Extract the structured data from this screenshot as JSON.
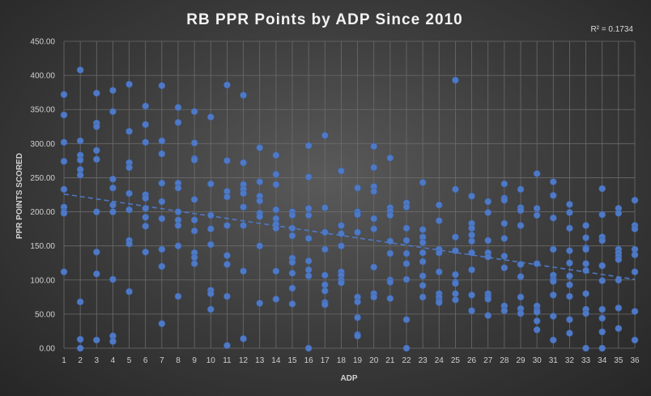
{
  "chart_data": {
    "type": "scatter",
    "title": "RB PPR Points by ADP Since 2010",
    "xlabel": "ADP",
    "ylabel": "PPR POINTS SCORED",
    "annotation": "R² = 0.1734",
    "xlim": [
      1,
      36
    ],
    "ylim": [
      0,
      450
    ],
    "x_ticks": [
      "1",
      "2",
      "3",
      "4",
      "5",
      "6",
      "7",
      "8",
      "9",
      "10",
      "11",
      "12",
      "13",
      "14",
      "15",
      "16",
      "17",
      "18",
      "19",
      "20",
      "21",
      "22",
      "23",
      "24",
      "25",
      "26",
      "27",
      "28",
      "29",
      "30",
      "31",
      "32",
      "33",
      "34",
      "35",
      "36"
    ],
    "y_ticks": [
      "0.00",
      "50.00",
      "100.00",
      "150.00",
      "200.00",
      "250.00",
      "300.00",
      "350.00",
      "400.00",
      "450.00"
    ],
    "grid": true,
    "trendline": {
      "type": "linear",
      "x": [
        1,
        36
      ],
      "y": [
        226,
        101
      ]
    },
    "points": [
      [
        1,
        372
      ],
      [
        1,
        342
      ],
      [
        1,
        302
      ],
      [
        1,
        274
      ],
      [
        1,
        233
      ],
      [
        1,
        207
      ],
      [
        1,
        200
      ],
      [
        1,
        198
      ],
      [
        1,
        112
      ],
      [
        2,
        408
      ],
      [
        2,
        304
      ],
      [
        2,
        283
      ],
      [
        2,
        276
      ],
      [
        2,
        262
      ],
      [
        2,
        254
      ],
      [
        2,
        68
      ],
      [
        2,
        13
      ],
      [
        2,
        0
      ],
      [
        3,
        374
      ],
      [
        3,
        330
      ],
      [
        3,
        325
      ],
      [
        3,
        290
      ],
      [
        3,
        277
      ],
      [
        3,
        200
      ],
      [
        3,
        141
      ],
      [
        3,
        109
      ],
      [
        3,
        12
      ],
      [
        4,
        378
      ],
      [
        4,
        347
      ],
      [
        4,
        248
      ],
      [
        4,
        235
      ],
      [
        4,
        210
      ],
      [
        4,
        200
      ],
      [
        4,
        101
      ],
      [
        4,
        18
      ],
      [
        4,
        10
      ],
      [
        5,
        387
      ],
      [
        5,
        318
      ],
      [
        5,
        272
      ],
      [
        5,
        265
      ],
      [
        5,
        227
      ],
      [
        5,
        203
      ],
      [
        5,
        158
      ],
      [
        5,
        153
      ],
      [
        5,
        83
      ],
      [
        6,
        355
      ],
      [
        6,
        328
      ],
      [
        6,
        302
      ],
      [
        6,
        225
      ],
      [
        6,
        220
      ],
      [
        6,
        205
      ],
      [
        6,
        192
      ],
      [
        6,
        179
      ],
      [
        6,
        141
      ],
      [
        7,
        385
      ],
      [
        7,
        304
      ],
      [
        7,
        285
      ],
      [
        7,
        242
      ],
      [
        7,
        215
      ],
      [
        7,
        190
      ],
      [
        7,
        145
      ],
      [
        7,
        120
      ],
      [
        7,
        36
      ],
      [
        8,
        353
      ],
      [
        8,
        331
      ],
      [
        8,
        242
      ],
      [
        8,
        235
      ],
      [
        8,
        200
      ],
      [
        8,
        188
      ],
      [
        8,
        180
      ],
      [
        8,
        150
      ],
      [
        8,
        76
      ],
      [
        9,
        347
      ],
      [
        9,
        301
      ],
      [
        9,
        278
      ],
      [
        9,
        276
      ],
      [
        9,
        218
      ],
      [
        9,
        188
      ],
      [
        9,
        172
      ],
      [
        9,
        140
      ],
      [
        9,
        133
      ],
      [
        9,
        124
      ],
      [
        10,
        339
      ],
      [
        10,
        241
      ],
      [
        10,
        195
      ],
      [
        10,
        175
      ],
      [
        10,
        152
      ],
      [
        10,
        85
      ],
      [
        10,
        80
      ],
      [
        10,
        57
      ],
      [
        11,
        386
      ],
      [
        11,
        275
      ],
      [
        11,
        230
      ],
      [
        11,
        222
      ],
      [
        11,
        180
      ],
      [
        11,
        136
      ],
      [
        11,
        123
      ],
      [
        11,
        76
      ],
      [
        11,
        4
      ],
      [
        12,
        371
      ],
      [
        12,
        272
      ],
      [
        12,
        240
      ],
      [
        12,
        233
      ],
      [
        12,
        227
      ],
      [
        12,
        207
      ],
      [
        12,
        180
      ],
      [
        12,
        113
      ],
      [
        12,
        14
      ],
      [
        13,
        294
      ],
      [
        13,
        244
      ],
      [
        13,
        223
      ],
      [
        13,
        216
      ],
      [
        13,
        198
      ],
      [
        13,
        193
      ],
      [
        13,
        150
      ],
      [
        13,
        66
      ],
      [
        14,
        283
      ],
      [
        14,
        255
      ],
      [
        14,
        240
      ],
      [
        14,
        203
      ],
      [
        14,
        190
      ],
      [
        14,
        182
      ],
      [
        14,
        176
      ],
      [
        14,
        113
      ],
      [
        14,
        72
      ],
      [
        15,
        200
      ],
      [
        15,
        195
      ],
      [
        15,
        176
      ],
      [
        15,
        165
      ],
      [
        15,
        132
      ],
      [
        15,
        126
      ],
      [
        15,
        110
      ],
      [
        15,
        88
      ],
      [
        15,
        65
      ],
      [
        16,
        297
      ],
      [
        16,
        251
      ],
      [
        16,
        205
      ],
      [
        16,
        195
      ],
      [
        16,
        161
      ],
      [
        16,
        128
      ],
      [
        16,
        115
      ],
      [
        16,
        106
      ],
      [
        16,
        0
      ],
      [
        17,
        312
      ],
      [
        17,
        206
      ],
      [
        17,
        170
      ],
      [
        17,
        145
      ],
      [
        17,
        107
      ],
      [
        17,
        93
      ],
      [
        17,
        84
      ],
      [
        17,
        67
      ],
      [
        17,
        64
      ],
      [
        18,
        260
      ],
      [
        18,
        180
      ],
      [
        18,
        168
      ],
      [
        18,
        150
      ],
      [
        18,
        112
      ],
      [
        18,
        107
      ],
      [
        18,
        100
      ],
      [
        18,
        96
      ],
      [
        19,
        235
      ],
      [
        19,
        200
      ],
      [
        19,
        196
      ],
      [
        19,
        170
      ],
      [
        19,
        75
      ],
      [
        19,
        68
      ],
      [
        19,
        45
      ],
      [
        19,
        20
      ],
      [
        19,
        18
      ],
      [
        20,
        296
      ],
      [
        20,
        265
      ],
      [
        20,
        237
      ],
      [
        20,
        230
      ],
      [
        20,
        190
      ],
      [
        20,
        175
      ],
      [
        20,
        119
      ],
      [
        20,
        80
      ],
      [
        20,
        75
      ],
      [
        21,
        279
      ],
      [
        21,
        206
      ],
      [
        21,
        201
      ],
      [
        21,
        195
      ],
      [
        21,
        157
      ],
      [
        21,
        139
      ],
      [
        21,
        100
      ],
      [
        21,
        97
      ],
      [
        21,
        73
      ],
      [
        22,
        213
      ],
      [
        22,
        207
      ],
      [
        22,
        176
      ],
      [
        22,
        158
      ],
      [
        22,
        139
      ],
      [
        22,
        124
      ],
      [
        22,
        101
      ],
      [
        22,
        42
      ],
      [
        22,
        0
      ],
      [
        23,
        243
      ],
      [
        23,
        174
      ],
      [
        23,
        163
      ],
      [
        23,
        155
      ],
      [
        23,
        140
      ],
      [
        23,
        127
      ],
      [
        23,
        106
      ],
      [
        23,
        92
      ],
      [
        23,
        75
      ],
      [
        24,
        210
      ],
      [
        24,
        187
      ],
      [
        24,
        145
      ],
      [
        24,
        140
      ],
      [
        24,
        112
      ],
      [
        24,
        80
      ],
      [
        24,
        75
      ],
      [
        24,
        70
      ],
      [
        24,
        67
      ],
      [
        25,
        393
      ],
      [
        25,
        233
      ],
      [
        25,
        163
      ],
      [
        25,
        143
      ],
      [
        25,
        108
      ],
      [
        25,
        97
      ],
      [
        25,
        95
      ],
      [
        25,
        80
      ],
      [
        25,
        71
      ],
      [
        26,
        223
      ],
      [
        26,
        183
      ],
      [
        26,
        176
      ],
      [
        26,
        166
      ],
      [
        26,
        157
      ],
      [
        26,
        140
      ],
      [
        26,
        115
      ],
      [
        26,
        78
      ],
      [
        26,
        55
      ],
      [
        27,
        215
      ],
      [
        27,
        199
      ],
      [
        27,
        158
      ],
      [
        27,
        140
      ],
      [
        27,
        134
      ],
      [
        27,
        80
      ],
      [
        27,
        76
      ],
      [
        27,
        72
      ],
      [
        27,
        48
      ],
      [
        28,
        241
      ],
      [
        28,
        220
      ],
      [
        28,
        217
      ],
      [
        28,
        183
      ],
      [
        28,
        161
      ],
      [
        28,
        135
      ],
      [
        28,
        118
      ],
      [
        28,
        62
      ],
      [
        28,
        55
      ],
      [
        29,
        233
      ],
      [
        29,
        206
      ],
      [
        29,
        202
      ],
      [
        29,
        180
      ],
      [
        29,
        123
      ],
      [
        29,
        105
      ],
      [
        29,
        75
      ],
      [
        29,
        58
      ],
      [
        29,
        51
      ],
      [
        30,
        256
      ],
      [
        30,
        205
      ],
      [
        30,
        195
      ],
      [
        30,
        124
      ],
      [
        30,
        62
      ],
      [
        30,
        56
      ],
      [
        30,
        53
      ],
      [
        30,
        40
      ],
      [
        30,
        27
      ],
      [
        31,
        244
      ],
      [
        31,
        224
      ],
      [
        31,
        191
      ],
      [
        31,
        145
      ],
      [
        31,
        107
      ],
      [
        31,
        101
      ],
      [
        31,
        98
      ],
      [
        31,
        78
      ],
      [
        31,
        47
      ],
      [
        31,
        12
      ],
      [
        32,
        211
      ],
      [
        32,
        199
      ],
      [
        32,
        176
      ],
      [
        32,
        143
      ],
      [
        32,
        125
      ],
      [
        32,
        106
      ],
      [
        32,
        93
      ],
      [
        32,
        76
      ],
      [
        32,
        42
      ],
      [
        32,
        22
      ],
      [
        33,
        180
      ],
      [
        33,
        162
      ],
      [
        33,
        147
      ],
      [
        33,
        145
      ],
      [
        33,
        124
      ],
      [
        33,
        114
      ],
      [
        33,
        80
      ],
      [
        33,
        57
      ],
      [
        33,
        51
      ],
      [
        33,
        0
      ],
      [
        34,
        234
      ],
      [
        34,
        196
      ],
      [
        34,
        163
      ],
      [
        34,
        158
      ],
      [
        34,
        121
      ],
      [
        34,
        99
      ],
      [
        34,
        57
      ],
      [
        34,
        44
      ],
      [
        34,
        24
      ],
      [
        34,
        0
      ],
      [
        35,
        205
      ],
      [
        35,
        198
      ],
      [
        35,
        145
      ],
      [
        35,
        140
      ],
      [
        35,
        135
      ],
      [
        35,
        130
      ],
      [
        35,
        100
      ],
      [
        35,
        59
      ],
      [
        35,
        29
      ],
      [
        36,
        217
      ],
      [
        36,
        180
      ],
      [
        36,
        175
      ],
      [
        36,
        145
      ],
      [
        36,
        137
      ],
      [
        36,
        112
      ],
      [
        36,
        54
      ],
      [
        36,
        12
      ]
    ]
  }
}
